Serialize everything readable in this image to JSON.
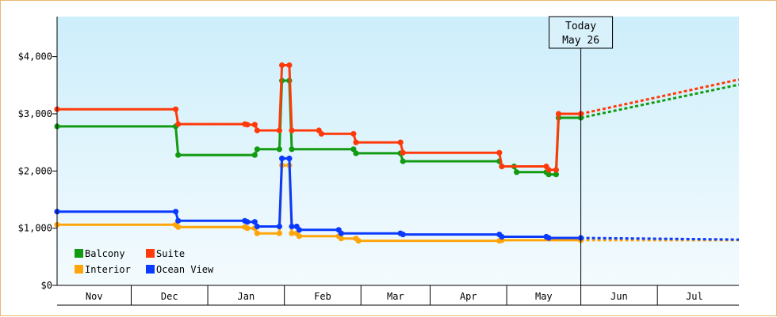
{
  "chart_data": {
    "type": "line",
    "title": "",
    "xlabel": "",
    "ylabel": "",
    "ylim": [
      0,
      4700
    ],
    "y_ticks": [
      "$0",
      "$1,000",
      "$2,000",
      "$3,000",
      "$4,000"
    ],
    "y_tick_values": [
      0,
      1000,
      2000,
      3000,
      4000
    ],
    "x_tick_labels": [
      "Nov",
      "Dec",
      "Jan",
      "Feb",
      "Mar",
      "Apr",
      "May",
      "Jun",
      "Jul"
    ],
    "x_range_days": [
      0,
      276
    ],
    "today": {
      "line1": "Today",
      "line2": "May 26",
      "day": 212
    },
    "legend_position": "bottom-left",
    "grid": false,
    "series": [
      {
        "name": "Balcony",
        "color": "#129b12",
        "points": [
          [
            0,
            2780
          ],
          [
            48,
            2780
          ],
          [
            49,
            2280
          ],
          [
            80,
            2280
          ],
          [
            81,
            2380
          ],
          [
            90,
            2380
          ],
          [
            91,
            3580
          ],
          [
            94,
            3580
          ],
          [
            95,
            2380
          ],
          [
            120,
            2380
          ],
          [
            121,
            2310
          ],
          [
            139,
            2310
          ],
          [
            140,
            2170
          ],
          [
            179,
            2170
          ],
          [
            180,
            2080
          ],
          [
            185,
            2080
          ],
          [
            186,
            1980
          ],
          [
            198,
            1980
          ],
          [
            199,
            1940
          ],
          [
            202,
            1940
          ],
          [
            203,
            2930
          ],
          [
            212,
            2930
          ]
        ],
        "projection": [
          [
            212,
            2930
          ],
          [
            276,
            3510
          ]
        ]
      },
      {
        "name": "Suite",
        "color": "#ff3a0a",
        "points": [
          [
            0,
            3080
          ],
          [
            48,
            3080
          ],
          [
            49,
            2820
          ],
          [
            76,
            2820
          ],
          [
            77,
            2810
          ],
          [
            80,
            2810
          ],
          [
            81,
            2710
          ],
          [
            90,
            2710
          ],
          [
            91,
            3850
          ],
          [
            94,
            3850
          ],
          [
            95,
            2710
          ],
          [
            106,
            2710
          ],
          [
            107,
            2650
          ],
          [
            120,
            2650
          ],
          [
            121,
            2500
          ],
          [
            139,
            2500
          ],
          [
            140,
            2320
          ],
          [
            179,
            2320
          ],
          [
            180,
            2080
          ],
          [
            198,
            2080
          ],
          [
            199,
            2020
          ],
          [
            202,
            2020
          ],
          [
            203,
            3000
          ],
          [
            212,
            3000
          ]
        ],
        "projection": [
          [
            212,
            3000
          ],
          [
            276,
            3600
          ]
        ]
      },
      {
        "name": "Interior",
        "color": "#ffa50a",
        "points": [
          [
            0,
            1060
          ],
          [
            48,
            1060
          ],
          [
            49,
            1020
          ],
          [
            76,
            1020
          ],
          [
            77,
            1000
          ],
          [
            80,
            1000
          ],
          [
            81,
            910
          ],
          [
            90,
            910
          ],
          [
            91,
            2100
          ],
          [
            94,
            2100
          ],
          [
            95,
            910
          ],
          [
            97,
            910
          ],
          [
            98,
            860
          ],
          [
            114,
            860
          ],
          [
            115,
            820
          ],
          [
            121,
            820
          ],
          [
            122,
            780
          ],
          [
            179,
            780
          ],
          [
            180,
            790
          ],
          [
            212,
            790
          ]
        ],
        "projection": [
          [
            212,
            790
          ],
          [
            276,
            790
          ]
        ]
      },
      {
        "name": "Ocean View",
        "color": "#0a3aff",
        "points": [
          [
            0,
            1290
          ],
          [
            48,
            1290
          ],
          [
            49,
            1130
          ],
          [
            76,
            1130
          ],
          [
            77,
            1110
          ],
          [
            80,
            1110
          ],
          [
            81,
            1030
          ],
          [
            90,
            1030
          ],
          [
            91,
            2220
          ],
          [
            94,
            2220
          ],
          [
            95,
            1030
          ],
          [
            97,
            1030
          ],
          [
            98,
            970
          ],
          [
            114,
            970
          ],
          [
            115,
            910
          ],
          [
            139,
            910
          ],
          [
            140,
            890
          ],
          [
            179,
            890
          ],
          [
            180,
            850
          ],
          [
            198,
            850
          ],
          [
            199,
            830
          ],
          [
            212,
            830
          ]
        ],
        "projection": [
          [
            212,
            830
          ],
          [
            276,
            800
          ]
        ]
      }
    ]
  }
}
